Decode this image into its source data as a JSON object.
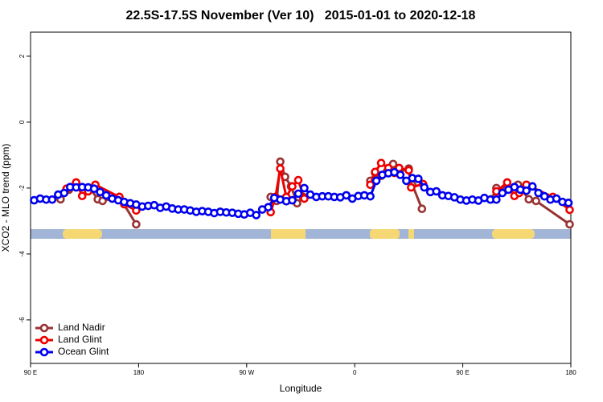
{
  "chart_data": {
    "type": "line",
    "title": "22.5S-17.5S November (Ver 10)   2015-01-01 to 2020-12-18",
    "xlabel": "Longitude",
    "ylabel": "XCO2 - MLO trend (ppm)",
    "xlim": [
      90,
      540
    ],
    "xticks": [
      {
        "value": 90,
        "label": "90 E"
      },
      {
        "value": 180,
        "label": "180"
      },
      {
        "value": 270,
        "label": "90 W"
      },
      {
        "value": 360,
        "label": "0"
      },
      {
        "value": 450,
        "label": "90 E"
      },
      {
        "value": 540,
        "label": "180"
      }
    ],
    "ylim": [
      -7.32,
      2.73
    ],
    "yticks": [
      2,
      0,
      -2,
      -4,
      -6
    ],
    "legend": "bottom-left",
    "series": [
      {
        "name": "Land Nadir",
        "color": "#993333",
        "x": [
          115,
          122,
          128,
          134,
          140,
          146,
          150,
          164,
          178,
          null,
          290,
          295,
          298,
          302,
          307,
          312,
          317,
          null,
          373,
          377,
          382,
          387,
          392,
          397,
          405,
          408,
          416,
          null,
          474,
          478,
          486,
          496,
          505,
          511,
          539
        ],
        "values": [
          -2.34,
          -2.05,
          -1.95,
          -2.07,
          -2.02,
          -2.34,
          -2.39,
          -2.27,
          -3.1,
          null,
          -2.27,
          -2.39,
          -1.2,
          -1.66,
          -1.95,
          -2.46,
          -2.27,
          null,
          -1.78,
          -1.54,
          -1.63,
          -1.49,
          -1.27,
          -1.51,
          -1.41,
          -1.9,
          -2.63,
          null,
          -2.34,
          -2.0,
          -2.05,
          -1.9,
          -2.34,
          -2.39,
          -3.1
        ]
      },
      {
        "name": "Land Glint",
        "color": "#ee0000",
        "x": [
          120,
          128,
          133,
          138,
          144,
          164,
          168,
          178,
          null,
          290,
          294,
          298,
          303,
          308,
          313,
          318,
          null,
          373,
          377,
          382,
          388,
          393,
          397,
          405,
          407,
          417,
          null,
          478,
          487,
          493,
          497,
          503,
          525,
          539
        ],
        "values": [
          -2.02,
          -1.83,
          -2.24,
          -2.1,
          -1.9,
          -2.27,
          -2.49,
          -2.68,
          null,
          -2.73,
          -2.27,
          -1.41,
          -2.27,
          -1.95,
          -1.76,
          -2.32,
          null,
          -1.9,
          -1.51,
          -1.24,
          -1.39,
          -1.54,
          -1.39,
          -1.46,
          -1.98,
          -1.88,
          null,
          -2.1,
          -1.83,
          -2.24,
          -2.15,
          -1.9,
          -2.27,
          -2.66
        ]
      },
      {
        "name": "Ocean Glint",
        "color": "#0000ee",
        "x": [
          93,
          98,
          103,
          108,
          113,
          118,
          123,
          128,
          133,
          138,
          143,
          148,
          153,
          158,
          163,
          168,
          173,
          178,
          183,
          188,
          193,
          198,
          203,
          208,
          213,
          218,
          223,
          228,
          233,
          238,
          243,
          248,
          253,
          258,
          263,
          268,
          273,
          278,
          283,
          288,
          293,
          298,
          303,
          308,
          313,
          318,
          323,
          328,
          333,
          338,
          343,
          348,
          353,
          358,
          363,
          368,
          373,
          378,
          383,
          388,
          393,
          398,
          403,
          408,
          413,
          418,
          423,
          428,
          433,
          438,
          443,
          448,
          453,
          458,
          463,
          468,
          473,
          478,
          483,
          488,
          493,
          498,
          503,
          508,
          513,
          518,
          523,
          528,
          533,
          538
        ],
        "values": [
          -2.37,
          -2.32,
          -2.35,
          -2.35,
          -2.2,
          -2.15,
          -1.97,
          -1.98,
          -1.97,
          -1.98,
          -2.02,
          -2.12,
          -2.22,
          -2.32,
          -2.37,
          -2.42,
          -2.46,
          -2.5,
          -2.56,
          -2.54,
          -2.52,
          -2.6,
          -2.56,
          -2.62,
          -2.65,
          -2.65,
          -2.68,
          -2.72,
          -2.7,
          -2.72,
          -2.76,
          -2.72,
          -2.74,
          -2.75,
          -2.78,
          -2.8,
          -2.75,
          -2.82,
          -2.65,
          -2.58,
          -2.3,
          -2.35,
          -2.4,
          -2.37,
          -2.17,
          -2.0,
          -2.2,
          -2.27,
          -2.25,
          -2.25,
          -2.27,
          -2.28,
          -2.22,
          -2.32,
          -2.24,
          -2.22,
          -2.25,
          -1.78,
          -1.6,
          -1.55,
          -1.52,
          -1.6,
          -1.78,
          -1.7,
          -1.72,
          -1.98,
          -2.12,
          -2.1,
          -2.22,
          -2.24,
          -2.28,
          -2.35,
          -2.38,
          -2.35,
          -2.38,
          -2.3,
          -2.35,
          -2.35,
          -2.15,
          -2.05,
          -1.97,
          -2.05,
          -2.08,
          -1.95,
          -2.15,
          -2.25,
          -2.35,
          -2.32,
          -2.42,
          -2.45
        ]
      }
    ]
  }
}
